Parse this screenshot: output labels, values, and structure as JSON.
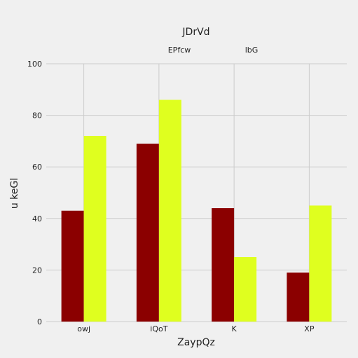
{
  "chart_data": {
    "type": "bar",
    "title": "JDrVd",
    "xlabel": "ZaypQz",
    "ylabel": "u keGl",
    "categories": [
      "owj",
      "iQoT",
      "K",
      "XP"
    ],
    "series": [
      {
        "name": "EPfcw",
        "color": "#8b0000",
        "values": [
          43,
          69,
          44,
          19
        ]
      },
      {
        "name": "lbG",
        "color": "#dfff1f",
        "values": [
          72,
          86,
          25,
          45
        ]
      }
    ],
    "ylim": [
      0,
      100
    ],
    "yticks": [
      "0",
      "20",
      "40",
      "60",
      "80",
      "100"
    ],
    "grid": true,
    "legend_position": "top"
  }
}
